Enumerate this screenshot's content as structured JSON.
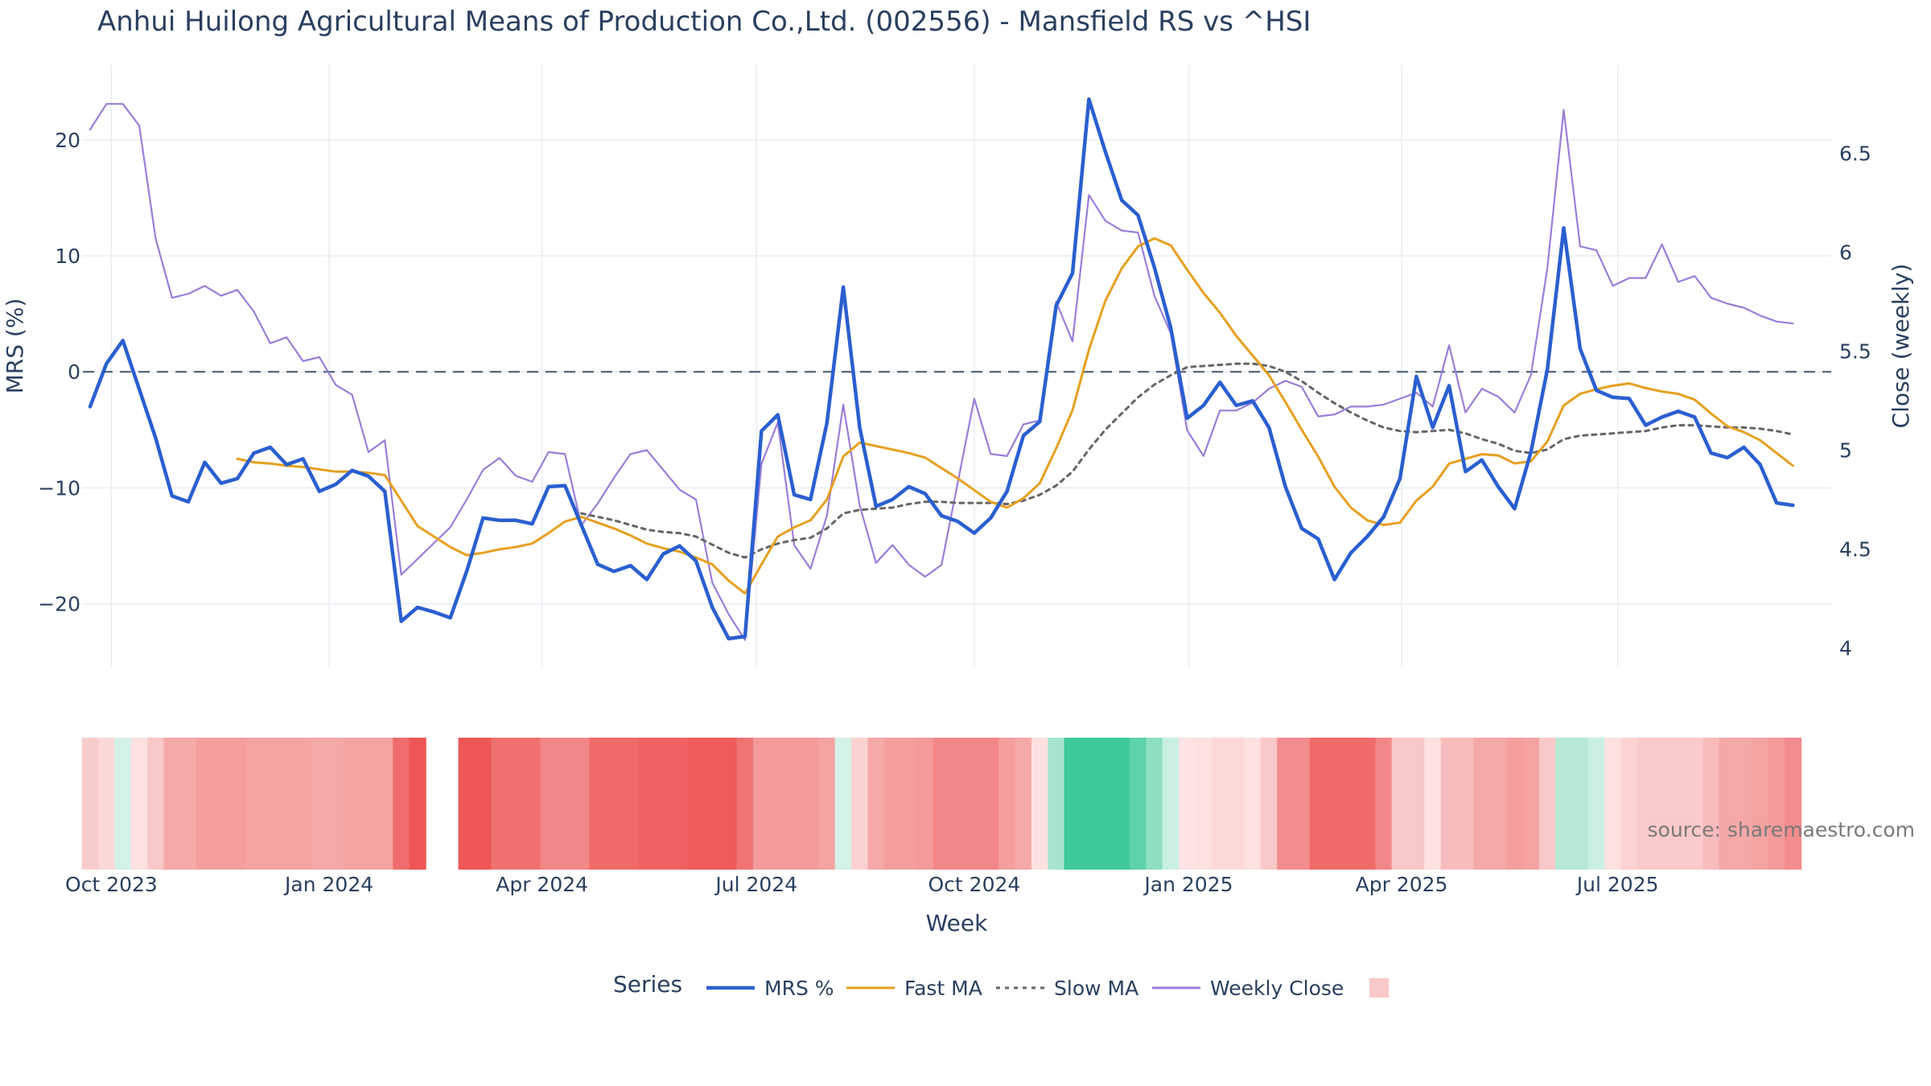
{
  "chart_data": {
    "type": "line",
    "title": "Anhui Huilong Agricultural Means of Production Co.,Ltd. (002556) - Mansfield RS vs ^HSI",
    "xlabel": "Week",
    "ylabel": "MRS (%)",
    "y2label": "Close (weekly)",
    "ylim": [
      -25.5,
      26.5
    ],
    "y2lim": [
      3.9,
      6.95
    ],
    "yticks": [
      -20,
      -10,
      0,
      10,
      20
    ],
    "yticklabels": [
      "−20",
      "−10",
      "0",
      "10",
      "20"
    ],
    "y2ticks": [
      4,
      4.5,
      5,
      5.5,
      6,
      6.5
    ],
    "y2ticklabels": [
      "4",
      "4.5",
      "5",
      "5.5",
      "6",
      "6.5"
    ],
    "xticklabels": [
      "Oct 2023",
      "Jan 2024",
      "Apr 2024",
      "Jul 2024",
      "Oct 2024",
      "Jan 2025",
      "Apr 2025",
      "Jul 2025"
    ],
    "xtick_index": [
      1.3,
      14.6,
      27.6,
      40.7,
      54.0,
      67.1,
      80.1,
      93.3
    ],
    "source": "source: sharemaestro.com",
    "legend": {
      "title": "Series",
      "position": "bottom"
    },
    "zero_line": 0,
    "series": [
      {
        "name": "MRS %",
        "axis": "y",
        "color": "#2a5fd0",
        "dash": "solid",
        "values": [
          -3,
          0.7,
          2.7,
          -1.5,
          -5.7,
          -10.7,
          -11.2,
          -7.8,
          -9.6,
          -9.2,
          -7,
          -6.5,
          -8,
          -7.5,
          -10.3,
          -9.7,
          -8.5,
          -9,
          -10.3,
          -21.5,
          -20.3,
          -20.7,
          -21.2,
          -17.2,
          -12.6,
          -12.8,
          -12.8,
          -13.1,
          -9.9,
          -9.8,
          -13.2,
          -16.6,
          -17.2,
          -16.7,
          -17.9,
          -15.7,
          -15,
          -16.3,
          -20.3,
          -23,
          -22.8,
          -5.1,
          -3.7,
          -10.6,
          -11,
          -4.4,
          7.3,
          -4.8,
          -11.6,
          -11,
          -9.9,
          -10.5,
          -12.4,
          -12.9,
          -13.9,
          -12.6,
          -10.3,
          -5.5,
          -4.3,
          5.7,
          8.5,
          23.5,
          19,
          14.8,
          13.5,
          9,
          3.8,
          -4,
          -2.9,
          -0.9,
          -2.9,
          -2.5,
          -4.8,
          -9.9,
          -13.5,
          -14.4,
          -17.9,
          -15.6,
          -14.2,
          -12.5,
          -9.2,
          -0.4,
          -4.8,
          -1.2,
          -8.6,
          -7.6,
          -9.9,
          -11.8,
          -6.9,
          0.2,
          12.4,
          2,
          -1.6,
          -2.2,
          -2.3,
          -4.6,
          -3.9,
          -3.4,
          -3.9,
          -7,
          -7.4,
          -6.5,
          -8,
          -11.3,
          -11.5
        ]
      },
      {
        "name": "Fast MA",
        "axis": "y",
        "color": "#e6a020",
        "dash": "solid",
        "values": [
          null,
          null,
          null,
          null,
          null,
          null,
          null,
          null,
          null,
          -7.5,
          -7.8,
          -7.9,
          -8.1,
          -8.2,
          -8.4,
          -8.6,
          -8.6,
          -8.7,
          -8.9,
          -11.1,
          -13.3,
          -14.2,
          -15.1,
          -15.8,
          -15.6,
          -15.3,
          -15.1,
          -14.8,
          -13.9,
          -12.9,
          -12.5,
          -13,
          -13.5,
          -14.1,
          -14.8,
          -15.2,
          -15.5,
          -16,
          -16.6,
          -18,
          -19.1,
          -16.6,
          -14.2,
          -13.4,
          -12.8,
          -11,
          -7.3,
          -6.1,
          -6.4,
          -6.7,
          -7,
          -7.4,
          -8.3,
          -9.2,
          -10.2,
          -11.2,
          -11.7,
          -10.9,
          -9.6,
          -6.6,
          -3.3,
          1.9,
          6.1,
          8.9,
          10.8,
          11.5,
          10.9,
          8.8,
          6.8,
          5.1,
          3.1,
          1.4,
          -0.3,
          -2.6,
          -5,
          -7.3,
          -9.9,
          -11.7,
          -12.8,
          -13.2,
          -13,
          -11.1,
          -9.9,
          -7.9,
          -7.5,
          -7.1,
          -7.2,
          -7.9,
          -7.7,
          -6,
          -2.9,
          -1.9,
          -1.5,
          -1.2,
          -1,
          -1.4,
          -1.7,
          -1.9,
          -2.4,
          -3.6,
          -4.7,
          -5.2,
          -5.9,
          -7,
          -8.1
        ]
      },
      {
        "name": "Slow MA",
        "axis": "y",
        "color": "#666666",
        "dash": "dotted",
        "values": [
          null,
          null,
          null,
          null,
          null,
          null,
          null,
          null,
          null,
          null,
          null,
          null,
          null,
          null,
          null,
          null,
          null,
          null,
          null,
          null,
          null,
          null,
          null,
          null,
          null,
          null,
          null,
          null,
          null,
          null,
          -12.2,
          -12.5,
          -12.8,
          -13.2,
          -13.6,
          -13.8,
          -13.9,
          -14.2,
          -14.9,
          -15.6,
          -16,
          -15.3,
          -14.8,
          -14.5,
          -14.3,
          -13.5,
          -12.2,
          -11.9,
          -11.8,
          -11.7,
          -11.4,
          -11.2,
          -11.2,
          -11.3,
          -11.3,
          -11.3,
          -11.4,
          -11.1,
          -10.6,
          -9.8,
          -8.6,
          -6.7,
          -5,
          -3.6,
          -2.2,
          -1.1,
          -0.3,
          0.4,
          0.5,
          0.6,
          0.7,
          0.7,
          0.5,
          0,
          -0.8,
          -1.8,
          -2.7,
          -3.5,
          -4.2,
          -4.8,
          -5.1,
          -5.2,
          -5.1,
          -5,
          -5.3,
          -5.8,
          -6.2,
          -6.8,
          -7,
          -6.7,
          -5.8,
          -5.5,
          -5.4,
          -5.3,
          -5.2,
          -5.1,
          -4.8,
          -4.6,
          -4.6,
          -4.7,
          -4.8,
          -4.8,
          -4.9,
          -5.1,
          -5.4
        ]
      },
      {
        "name": "Weekly Close",
        "axis": "y2",
        "color": "#9b7ed8",
        "dash": "solid",
        "values": [
          6.62,
          6.75,
          6.75,
          6.64,
          6.07,
          5.77,
          5.79,
          5.83,
          5.78,
          5.81,
          5.7,
          5.54,
          5.57,
          5.45,
          5.47,
          5.33,
          5.28,
          4.99,
          5.05,
          4.37,
          4.45,
          4.53,
          4.61,
          4.75,
          4.9,
          4.96,
          4.87,
          4.84,
          4.99,
          4.98,
          4.62,
          4.73,
          4.86,
          4.98,
          5,
          4.9,
          4.8,
          4.75,
          4.33,
          4.17,
          4.04,
          4.93,
          5.14,
          4.52,
          4.4,
          4.67,
          5.23,
          4.72,
          4.43,
          4.52,
          4.42,
          4.36,
          4.42,
          4.84,
          5.26,
          4.98,
          4.97,
          5.13,
          5.15,
          5.75,
          5.55,
          6.29,
          6.16,
          6.11,
          6.1,
          5.78,
          5.59,
          5.1,
          4.97,
          5.2,
          5.2,
          5.24,
          5.31,
          5.35,
          5.32,
          5.17,
          5.18,
          5.22,
          5.22,
          5.23,
          5.26,
          5.29,
          5.22,
          5.53,
          5.19,
          5.31,
          5.27,
          5.19,
          5.38,
          5.92,
          6.72,
          6.03,
          6.01,
          5.83,
          5.87,
          5.87,
          6.04,
          5.85,
          5.88,
          5.77,
          5.74,
          5.72,
          5.68,
          5.65,
          5.64
        ]
      }
    ],
    "strip": {
      "first_week": 0,
      "colors": [
        "#f9cccc",
        "#fbd8d8",
        "#d4f1e7",
        "#fde1e1",
        "#f9c8c8",
        "#f5a8a8",
        "#f5a8a8",
        "#f59e9e",
        "#f59e9e",
        "#f59e9e",
        "#f5a2a2",
        "#f5a2a2",
        "#f5a2a2",
        "#f5a2a2",
        "#f5a8a8",
        "#f5a8a8",
        "#f5a2a2",
        "#f5a2a2",
        "#f5a2a2",
        "#f06c6c",
        "#ef5656",
        null,
        null,
        "#ef5656",
        "#ef5656",
        "#f07070",
        "#f07070",
        "#f07070",
        "#f38686",
        "#f38686",
        "#f38686",
        "#f06a6a",
        "#f06a6a",
        "#f06a6a",
        "#f06262",
        "#f06262",
        "#f06262",
        "#ef5a5a",
        "#ef5a5a",
        "#ef5a5a",
        "#f07474",
        "#f59a9a",
        "#f59a9a",
        "#f59a9a",
        "#f59a9a",
        "#f5a2a2",
        "#d4f1e7",
        "#fbd2d2",
        "#f5a8a8",
        "#f59e9e",
        "#f59e9e",
        "#f59a9a",
        "#f38686",
        "#f38686",
        "#f38686",
        "#f38686",
        "#f59e9e",
        "#f5a8a8",
        "#fde1e1",
        "#a8e4cd",
        "#3ec99a",
        "#3ec99a",
        "#3ec99a",
        "#3ec99a",
        "#5ed2a8",
        "#8ce0c0",
        "#c9f0e1",
        "#fde3e3",
        "#fde1e1",
        "#fdd8d8",
        "#fdd8d8",
        "#fde1e1",
        "#f9c8c8",
        "#f38c8c",
        "#f38c8c",
        "#f06a6a",
        "#f06a6a",
        "#f06a6a",
        "#f06a6a",
        "#f38686",
        "#f9c8c8",
        "#f9c8c8",
        "#fde1e1",
        "#f9bcbc",
        "#f9bcbc",
        "#f5a8a8",
        "#f5a8a8",
        "#f59e9e",
        "#f5a2a2",
        "#f9c8c8",
        "#b6e9d5",
        "#b6e9d5",
        "#c9f0e1",
        "#fde1e1",
        "#fdd2d2",
        "#fbcaca",
        "#fbcaca",
        "#fbcaca",
        "#fbcaca",
        "#f9bcbc",
        "#f5a8a8",
        "#f5a8a8",
        "#f5a2a2",
        "#f59a9a",
        "#f38c8c"
      ]
    }
  }
}
